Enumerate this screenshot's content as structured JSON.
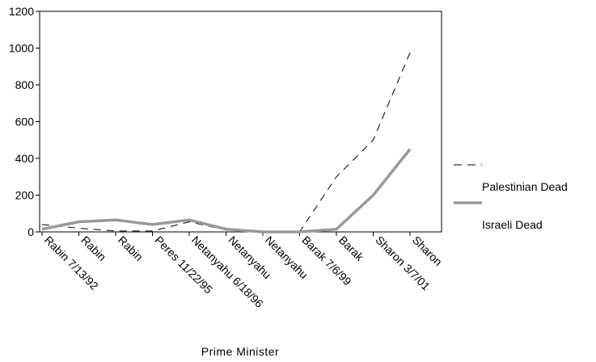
{
  "chart_data": {
    "type": "line",
    "xlabel": "Prime Minister",
    "ylabel": "",
    "ylim": [
      0,
      1200
    ],
    "yticks": [
      0,
      200,
      400,
      600,
      800,
      1000,
      1200
    ],
    "grid": false,
    "legend_position": "right",
    "categories": [
      "Rabin 7/13/92",
      "Rabin",
      "Rabin",
      "Peres 11/22/95",
      "Netanyahu 6/18/96",
      "Netanyahu",
      "Netanyahu",
      "Barak 7/6/99",
      "Barak",
      "Sharon 3/7/01",
      "Sharon"
    ],
    "series": [
      {
        "name": "Palestinian Dead",
        "style": "dashed",
        "color": "#000000",
        "values": [
          40,
          20,
          5,
          5,
          55,
          10,
          0,
          0,
          300,
          500,
          975
        ]
      },
      {
        "name": "Israeli Dead",
        "style": "solid",
        "color": "#999999",
        "values": [
          15,
          55,
          65,
          40,
          65,
          15,
          0,
          0,
          15,
          200,
          450
        ]
      }
    ]
  }
}
